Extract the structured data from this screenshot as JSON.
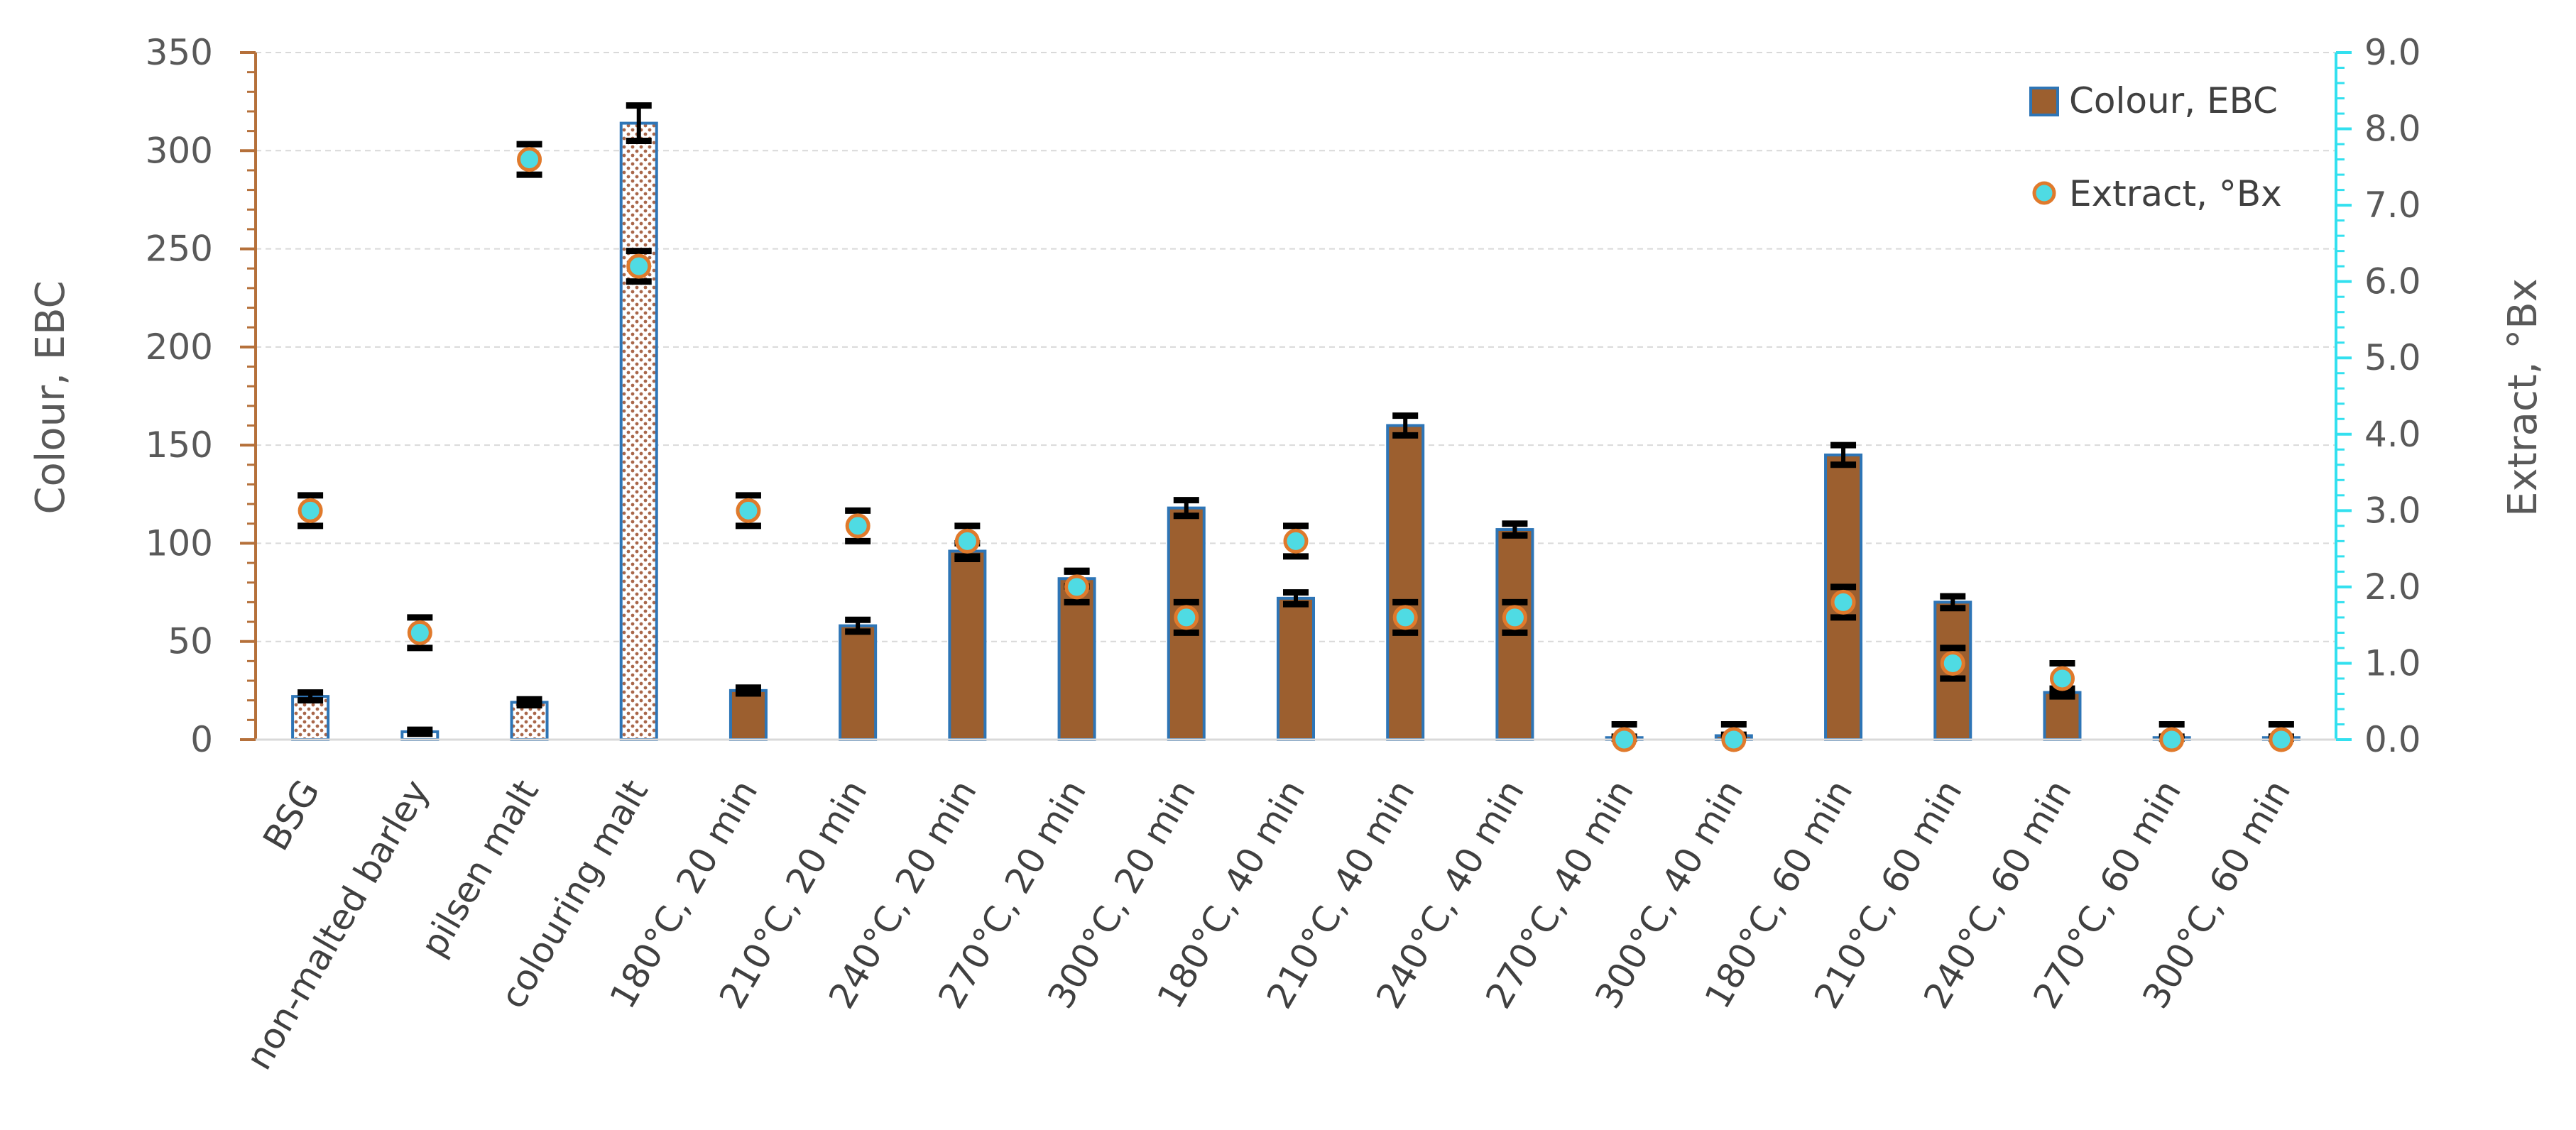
{
  "chart_data": {
    "type": "bar",
    "categories": [
      "BSG",
      "non-malted barley",
      "pilsen malt",
      "colouring malt",
      "180°C, 20 min",
      "210°C, 20 min",
      "240°C, 20 min",
      "270°C, 20 min",
      "300°C, 20 min",
      "180°C, 40 min",
      "210°C, 40 min",
      "240°C, 40 min",
      "270°C, 40 min",
      "300°C, 40 min",
      "180°C, 60 min",
      "210°C, 60 min",
      "240°C, 60 min",
      "270°C, 60 min",
      "300°C, 60 min"
    ],
    "y_left": {
      "label": "Colour, EBC",
      "lim": [
        0,
        350
      ],
      "ticks": [
        "0",
        "50",
        "100",
        "150",
        "200",
        "250",
        "300",
        "350"
      ]
    },
    "y_right": {
      "label": "Extract, °Bx",
      "lim": [
        0,
        9
      ],
      "ticks": [
        "0.0",
        "1.0",
        "2.0",
        "3.0",
        "4.0",
        "5.0",
        "6.0",
        "7.0",
        "8.0",
        "9.0"
      ]
    },
    "series": [
      {
        "name": "Colour, EBC",
        "kind": "bar",
        "axis": "left",
        "values": [
          22,
          4,
          19,
          314,
          25,
          58,
          96,
          82,
          118,
          72,
          160,
          107,
          1,
          2,
          145,
          70,
          24,
          1,
          1
        ],
        "errors": [
          2,
          1,
          1.5,
          9,
          1.5,
          3,
          4,
          4,
          4,
          3,
          5,
          3,
          0.5,
          0.5,
          5,
          3,
          2,
          0.5,
          0.5
        ],
        "pattern": [
          "dots",
          "plain",
          "dots",
          "dots",
          "solid",
          "solid",
          "solid",
          "solid",
          "solid",
          "solid",
          "solid",
          "solid",
          "solid",
          "solid",
          "solid",
          "solid",
          "solid",
          "solid",
          "solid"
        ]
      },
      {
        "name": "Extract, °Bx",
        "kind": "marker",
        "axis": "right",
        "values": [
          3.0,
          1.4,
          7.6,
          6.2,
          3.0,
          2.8,
          2.6,
          2.0,
          1.6,
          2.6,
          1.6,
          1.6,
          0.0,
          0.0,
          1.8,
          1.0,
          0.8,
          0.0,
          0.0
        ],
        "errors": [
          0.2,
          0.2,
          0.2,
          0.2,
          0.2,
          0.2,
          0.2,
          0.2,
          0.2,
          0.2,
          0.2,
          0.2,
          0.2,
          0.2,
          0.2,
          0.2,
          0.2,
          0.2,
          0.2
        ]
      }
    ],
    "grid": true,
    "legend_position": "top-right",
    "colors": {
      "bar_fill": "#9c5f2f",
      "bar_edge": "#2e75b6",
      "pattern_fill": "#a9674a",
      "marker_fill": "#4fdbe3",
      "marker_edge": "#e07a2c",
      "error_bar": "#000000",
      "left_axis": "#b5703a",
      "right_axis": "#33e0ef",
      "grid": "#d9d9d9",
      "text": "#595959"
    }
  }
}
